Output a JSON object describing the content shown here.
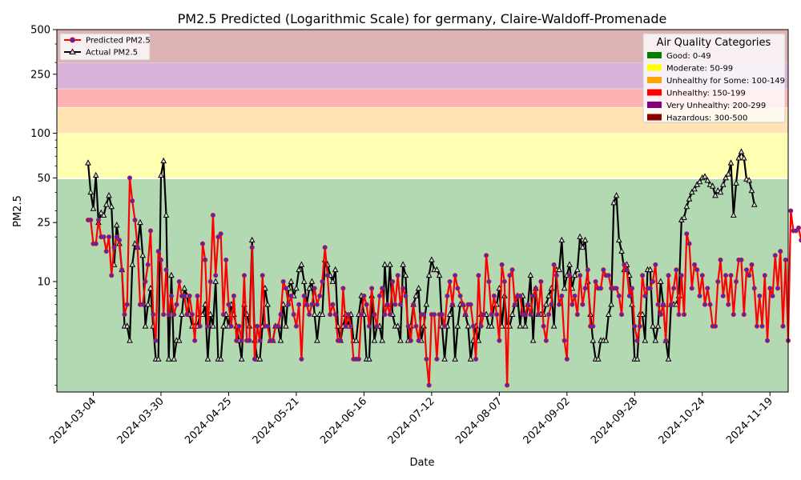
{
  "chart_data": {
    "type": "line",
    "title": "PM2.5 Predicted (Logarithmic Scale) for germany, Claire-Waldoff-Promenade",
    "xlabel": "Date",
    "ylabel": "PM2.5",
    "yscale": "log",
    "ylim": [
      1.8,
      500
    ],
    "xlim": [
      "2024-02-19",
      "2024-11-26"
    ],
    "x_ticks": [
      "2024-03-04",
      "2024-03-30",
      "2024-04-25",
      "2024-05-21",
      "2024-06-16",
      "2024-07-12",
      "2024-08-07",
      "2024-09-02",
      "2024-09-28",
      "2024-10-24",
      "2024-11-19"
    ],
    "y_ticks": [
      10,
      25,
      50,
      100,
      250,
      500
    ],
    "y_tick_labels": [
      "10",
      "25",
      "50",
      "100",
      "250",
      "500"
    ],
    "grid": false,
    "bands": [
      {
        "label": "Good: 0-49",
        "from": 0,
        "to": 49,
        "color": "#008000",
        "alpha": 0.3
      },
      {
        "label": "Moderate: 50-99",
        "from": 50,
        "to": 99,
        "color": "#ffff00",
        "alpha": 0.3
      },
      {
        "label": "Unhealthy for Some: 100-149",
        "from": 100,
        "to": 149,
        "color": "#ffa500",
        "alpha": 0.3
      },
      {
        "label": "Unhealthy: 150-199",
        "from": 150,
        "to": 199,
        "color": "#ff0000",
        "alpha": 0.3
      },
      {
        "label": "Very Unhealthy: 200-299",
        "from": 200,
        "to": 299,
        "color": "#800080",
        "alpha": 0.3
      },
      {
        "label": "Hazardous: 300-500",
        "from": 300,
        "to": 500,
        "color": "#8b0000",
        "alpha": 0.3
      }
    ],
    "legend_series_position": "upper-left",
    "legend_categories_title": "Air Quality Categories",
    "legend_categories_position": "upper-right",
    "series": [
      {
        "name": "Predicted PM2.5",
        "color": "#ff0000",
        "marker": "circle",
        "marker_face": "#3333cc",
        "start": "2024-03-02",
        "step_days": 1,
        "y": [
          26,
          26,
          18,
          18,
          26,
          20,
          20,
          16,
          20,
          11,
          17,
          20,
          19,
          12,
          6,
          7,
          50,
          35,
          26,
          17,
          7,
          7,
          10,
          13,
          22,
          6,
          4,
          16,
          14,
          6,
          12,
          6,
          8,
          6,
          7,
          10,
          8,
          8,
          6,
          8,
          6,
          4,
          8,
          5,
          18,
          14,
          5,
          10,
          28,
          11,
          20,
          21,
          6,
          14,
          7,
          5,
          8,
          4,
          5,
          4,
          11,
          4,
          4,
          17,
          3,
          5,
          4,
          11,
          5,
          5,
          4,
          4,
          5,
          5,
          6,
          10,
          9,
          7,
          8,
          6,
          5,
          7,
          3,
          8,
          7,
          6,
          7,
          9,
          7,
          8,
          10,
          17,
          11,
          6,
          7,
          6,
          4,
          4,
          9,
          5,
          6,
          5,
          3,
          3,
          3,
          6,
          8,
          7,
          5,
          9,
          6,
          5,
          8,
          9,
          6,
          7,
          6,
          10,
          7,
          11,
          7,
          9,
          8,
          5,
          4,
          7,
          5,
          4,
          6,
          6,
          3,
          2,
          6,
          6,
          3,
          6,
          6,
          5,
          8,
          10,
          7,
          11,
          9,
          8,
          7,
          6,
          7,
          7,
          5,
          3,
          11,
          5,
          6,
          15,
          10,
          6,
          8,
          6,
          4,
          13,
          10,
          2,
          11,
          12,
          7,
          8,
          8,
          6,
          6,
          7,
          6,
          8,
          9,
          6,
          10,
          5,
          4,
          6,
          7,
          13,
          11,
          7,
          8,
          4,
          3,
          11,
          7,
          8,
          6,
          11,
          7,
          9,
          12,
          5,
          5,
          10,
          9,
          9,
          12,
          11,
          11,
          9,
          9,
          9,
          8,
          6,
          13,
          12,
          8,
          9,
          5,
          4,
          5,
          11,
          8,
          9,
          9,
          10,
          13,
          7,
          6,
          7,
          4,
          11,
          7,
          9,
          12,
          6,
          11,
          6,
          21,
          18,
          9,
          13,
          12,
          8,
          11,
          7,
          9,
          7,
          5,
          5,
          10,
          14,
          8,
          11,
          7,
          11,
          6,
          10,
          14,
          14,
          6,
          12,
          11,
          13,
          9,
          5,
          8,
          5,
          11,
          4,
          9,
          8,
          15,
          9,
          16,
          5,
          14,
          4,
          30,
          22,
          22,
          23,
          19,
          27,
          25,
          15,
          46,
          41,
          34,
          26,
          30,
          23,
          24,
          33
        ]
      },
      {
        "name": "Actual PM2.5",
        "color": "#000000",
        "marker": "triangle",
        "marker_face": "#d9d9d9",
        "start": "2024-03-02",
        "step_days": 1,
        "y": [
          63,
          40,
          31,
          52,
          25,
          29,
          28,
          33,
          38,
          32,
          13,
          24,
          18,
          12,
          5,
          5,
          4,
          13,
          18,
          17,
          25,
          15,
          5,
          7,
          9,
          5,
          3,
          3,
          52,
          65,
          28,
          3,
          11,
          3,
          4,
          4,
          6,
          9,
          8,
          6,
          5,
          5,
          5,
          6,
          6,
          7,
          3,
          6,
          5,
          10,
          3,
          3,
          5,
          6,
          5,
          7,
          6,
          5,
          4,
          3,
          7,
          6,
          5,
          19,
          4,
          3,
          3,
          5,
          9,
          7,
          4,
          4,
          5,
          5,
          4,
          7,
          5,
          9,
          10,
          8,
          9,
          12,
          13,
          10,
          7,
          9,
          10,
          6,
          4,
          6,
          6,
          14,
          13,
          11,
          10,
          12,
          5,
          4,
          5,
          6,
          5,
          6,
          4,
          4,
          6,
          8,
          6,
          3,
          3,
          8,
          4,
          5,
          5,
          4,
          13,
          7,
          13,
          6,
          5,
          5,
          4,
          13,
          11,
          4,
          5,
          7,
          8,
          9,
          4,
          5,
          7,
          11,
          14,
          12,
          12,
          11,
          5,
          3,
          5,
          6,
          7,
          3,
          5,
          7,
          7,
          6,
          5,
          3,
          4,
          5,
          4,
          6,
          6,
          6,
          5,
          5,
          7,
          7,
          9,
          5,
          8,
          5,
          5,
          6,
          7,
          8,
          5,
          8,
          5,
          7,
          11,
          4,
          9,
          6,
          6,
          6,
          7,
          8,
          9,
          5,
          12,
          12,
          19,
          9,
          11,
          13,
          9,
          11,
          12,
          20,
          17,
          19,
          10,
          6,
          4,
          3,
          3,
          4,
          4,
          4,
          6,
          7,
          34,
          38,
          19,
          16,
          12,
          13,
          11,
          7,
          3,
          3,
          6,
          6,
          4,
          12,
          12,
          5,
          4,
          5,
          10,
          7,
          4,
          3,
          7,
          7,
          7,
          8,
          26,
          27,
          32,
          36,
          40,
          42,
          45,
          47,
          50,
          51,
          48,
          45,
          44,
          38,
          41,
          40,
          45,
          50,
          53,
          63,
          28,
          46,
          68,
          75,
          68,
          49,
          48,
          41,
          33
        ]
      }
    ]
  }
}
